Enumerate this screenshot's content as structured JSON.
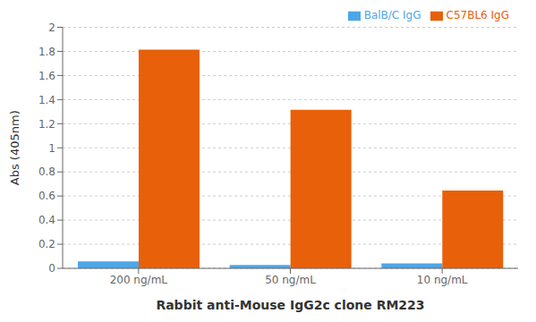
{
  "chart_data": {
    "type": "bar",
    "categories": [
      "200 ng/mL",
      "50 ng/mL",
      "10 ng/mL"
    ],
    "series": [
      {
        "name": "BalB/C IgG",
        "color": "#4DA6E8",
        "values": [
          0.058,
          0.028,
          0.04
        ]
      },
      {
        "name": "C57BL6 IgG",
        "color": "#E8600A",
        "values": [
          1.815,
          1.315,
          0.645
        ]
      }
    ],
    "xlabel": "Rabbit anti-Mouse IgG2c clone RM223",
    "ylabel": "Abs (405nm)",
    "ylim": [
      0,
      2.0
    ],
    "yticks": [
      0,
      0.2,
      0.4,
      0.6,
      0.8,
      1.0,
      1.2,
      1.4,
      1.6,
      1.8,
      2.0
    ],
    "grid": true,
    "legend": "upper right"
  }
}
